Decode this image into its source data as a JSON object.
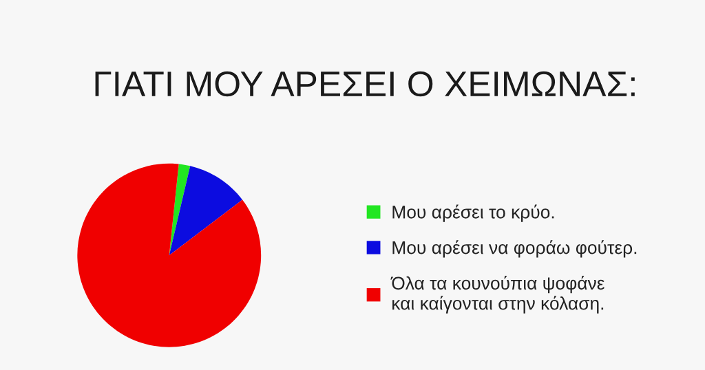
{
  "chart_data": {
    "type": "pie",
    "title": "ΓΙΑΤΙ ΜΟΥ ΑΡΕΣΕΙ Ο ΧΕΙΜΩΝΑΣ:",
    "categories": [
      "Μου αρέσει το κρύο.",
      "Μου αρέσει να φοράω φούτερ.",
      "Όλα τα κουνούπια ψοφάνε\nκαι καίγονται στην κόλαση."
    ],
    "values": [
      2,
      11,
      87
    ],
    "colors": [
      "#22e622",
      "#0c0ce0",
      "#f00000"
    ],
    "legend": "right"
  }
}
